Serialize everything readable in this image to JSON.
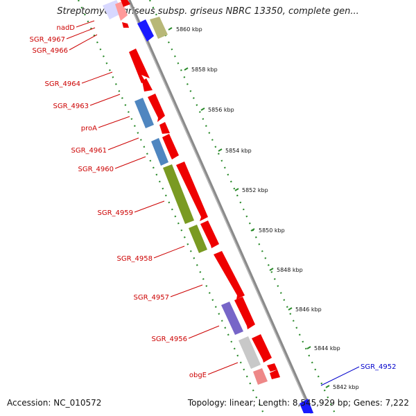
{
  "title": "Streptomyces griseus subsp. griseus NBRC 13350, complete gen...",
  "accession": "Accession: NC_010572",
  "summary": "Topology: linear; Length: 8,545,929 bp; Genes: 7,222",
  "colors": {
    "red": "#ee0000",
    "blue_strand": "#1a1aff",
    "steel_blue": "#4f86c0",
    "olive_green": "#7a9a22",
    "olive_khaki": "#b8b878",
    "purple": "#7765c8",
    "grey": "#c8c8c8",
    "pink": "#ee8888",
    "label_red": "#cc0000",
    "label_blue": "#0000cc",
    "tick_green": "#2a8a2a"
  },
  "scale": {
    "unit": "kbp",
    "ticks": [
      {
        "kbp": 5860,
        "label": "5860 kbp"
      },
      {
        "kbp": 5858,
        "label": "5858 kbp"
      },
      {
        "kbp": 5856,
        "label": "5856 kbp"
      },
      {
        "kbp": 5854,
        "label": "5854 kbp"
      },
      {
        "kbp": 5852,
        "label": "5852 kbp"
      },
      {
        "kbp": 5850,
        "label": "5850 kbp"
      },
      {
        "kbp": 5848,
        "label": "5848 kbp"
      },
      {
        "kbp": 5846,
        "label": "5846 kbp"
      },
      {
        "kbp": 5844,
        "label": "5844 kbp"
      },
      {
        "kbp": 5842,
        "label": "5842 kbp"
      }
    ]
  },
  "gene_labels": [
    {
      "text": "nadD",
      "color": "#cc0000"
    },
    {
      "text": "SGR_4967",
      "color": "#cc0000"
    },
    {
      "text": "SGR_4966",
      "color": "#cc0000"
    },
    {
      "text": "SGR_4964",
      "color": "#cc0000"
    },
    {
      "text": "SGR_4963",
      "color": "#cc0000"
    },
    {
      "text": "proA",
      "color": "#cc0000"
    },
    {
      "text": "SGR_4961",
      "color": "#cc0000"
    },
    {
      "text": "SGR_4960",
      "color": "#cc0000"
    },
    {
      "text": "SGR_4959",
      "color": "#cc0000"
    },
    {
      "text": "SGR_4958",
      "color": "#cc0000"
    },
    {
      "text": "SGR_4957",
      "color": "#cc0000"
    },
    {
      "text": "SGR_4956",
      "color": "#cc0000"
    },
    {
      "text": "obgE",
      "color": "#cc0000"
    },
    {
      "text": "SGR_4952",
      "color": "#0000cc"
    }
  ]
}
